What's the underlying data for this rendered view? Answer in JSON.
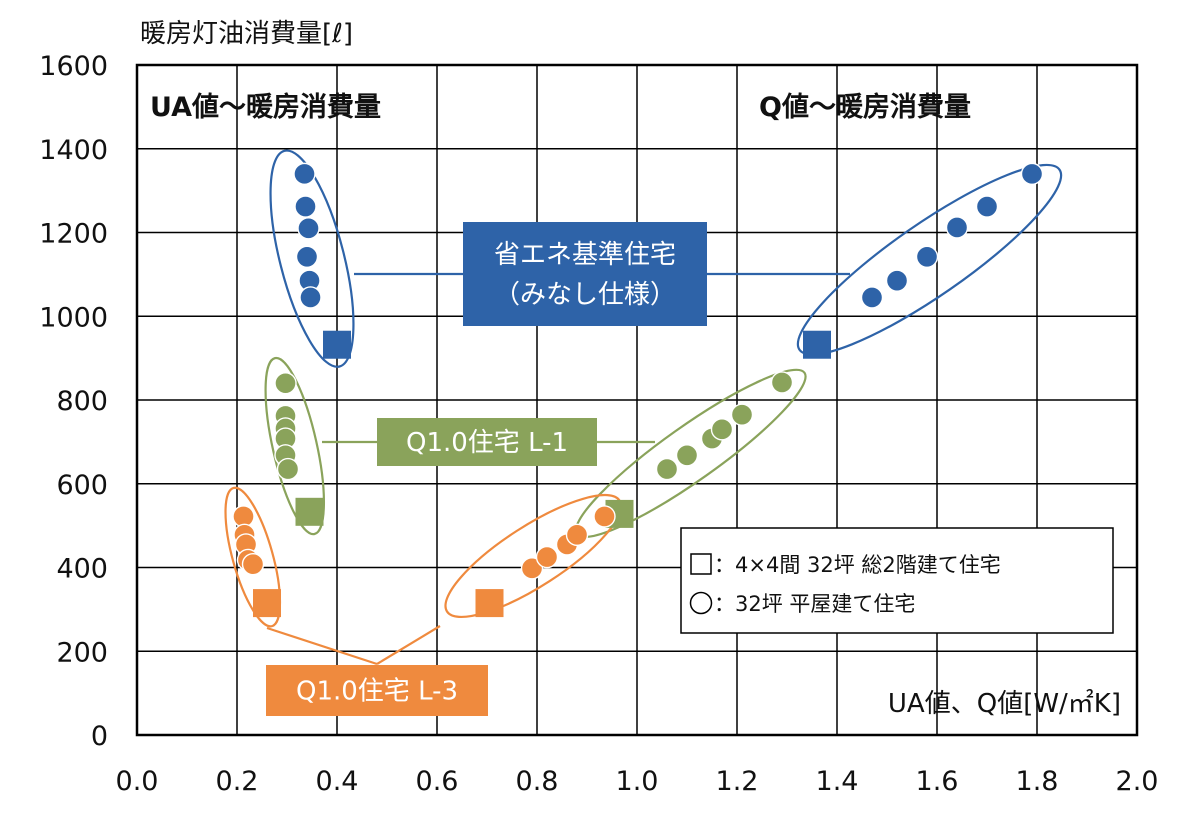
{
  "chart_data": {
    "type": "scatter",
    "ylabel": "暖房灯油消費量[ℓ]",
    "xlabel": "UA値、Q値[W/㎡K]",
    "xlim": [
      0.0,
      2.0
    ],
    "ylim": [
      0,
      1600
    ],
    "x_ticks": [
      "0.0",
      "0.2",
      "0.4",
      "0.6",
      "0.8",
      "1.0",
      "1.2",
      "1.4",
      "1.6",
      "1.8",
      "2.0"
    ],
    "y_ticks": [
      "0",
      "200",
      "400",
      "600",
      "800",
      "1000",
      "1200",
      "1400",
      "1600"
    ],
    "grid": true,
    "panel_titles": {
      "left": "UA値～暖房消費量",
      "right": "Q値～暖房消費量"
    },
    "series": [
      {
        "name": "省エネ基準住宅（みなし仕様）",
        "label_lines": [
          "省エネ基準住宅",
          "（みなし仕様）"
        ],
        "color": "#2e63a8",
        "circles": [
          {
            "x": 0.335,
            "y": 1340
          },
          {
            "x": 0.337,
            "y": 1262
          },
          {
            "x": 0.343,
            "y": 1210
          },
          {
            "x": 0.34,
            "y": 1142
          },
          {
            "x": 0.345,
            "y": 1085
          },
          {
            "x": 0.347,
            "y": 1045
          },
          {
            "x": 1.47,
            "y": 1045
          },
          {
            "x": 1.52,
            "y": 1085
          },
          {
            "x": 1.58,
            "y": 1142
          },
          {
            "x": 1.64,
            "y": 1212
          },
          {
            "x": 1.7,
            "y": 1262
          },
          {
            "x": 1.79,
            "y": 1340
          }
        ],
        "squares": [
          {
            "x": 0.4,
            "y": 932
          },
          {
            "x": 1.36,
            "y": 932
          }
        ]
      },
      {
        "name": "Q1.0住宅 L-1",
        "label_lines": [
          "Q1.0住宅 L-1"
        ],
        "color": "#8aa35b",
        "circles": [
          {
            "x": 0.297,
            "y": 840
          },
          {
            "x": 0.297,
            "y": 762
          },
          {
            "x": 0.297,
            "y": 732
          },
          {
            "x": 0.297,
            "y": 708
          },
          {
            "x": 0.297,
            "y": 668
          },
          {
            "x": 0.302,
            "y": 635
          },
          {
            "x": 1.06,
            "y": 635
          },
          {
            "x": 1.1,
            "y": 668
          },
          {
            "x": 1.15,
            "y": 708
          },
          {
            "x": 1.17,
            "y": 730
          },
          {
            "x": 1.21,
            "y": 765
          },
          {
            "x": 1.29,
            "y": 842
          }
        ],
        "squares": [
          {
            "x": 0.345,
            "y": 533
          },
          {
            "x": 0.965,
            "y": 528
          }
        ]
      },
      {
        "name": "Q1.0住宅 L-3",
        "label_lines": [
          "Q1.0住宅 L-3"
        ],
        "color": "#ef8a3e",
        "circles": [
          {
            "x": 0.213,
            "y": 522
          },
          {
            "x": 0.215,
            "y": 478
          },
          {
            "x": 0.218,
            "y": 455
          },
          {
            "x": 0.222,
            "y": 418
          },
          {
            "x": 0.232,
            "y": 408
          },
          {
            "x": 0.79,
            "y": 398
          },
          {
            "x": 0.82,
            "y": 425
          },
          {
            "x": 0.86,
            "y": 455
          },
          {
            "x": 0.88,
            "y": 478
          },
          {
            "x": 0.935,
            "y": 522
          }
        ],
        "squares": [
          {
            "x": 0.26,
            "y": 315
          },
          {
            "x": 0.705,
            "y": 315
          }
        ]
      }
    ],
    "legend": {
      "position": "bottom-right",
      "entries": [
        {
          "marker": "□",
          "text": "：4×4間 32坪 総2階建て住宅"
        },
        {
          "marker": "○",
          "text": "：32坪 平屋建て住宅"
        }
      ]
    }
  }
}
